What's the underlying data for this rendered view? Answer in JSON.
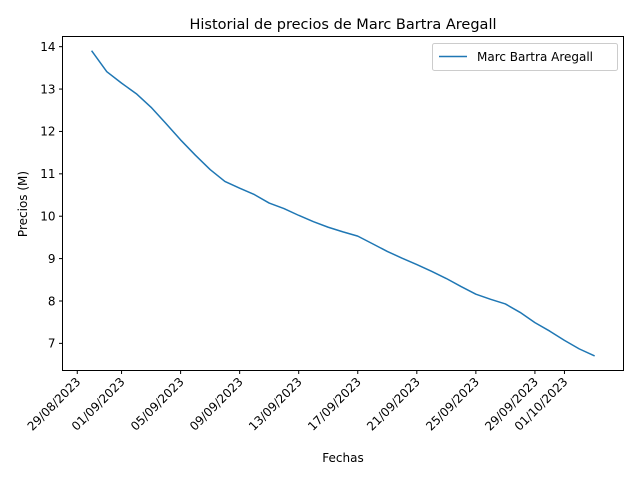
{
  "chart_data": {
    "type": "line",
    "title": "Historial de precios de Marc Bartra Aregall",
    "xlabel": "Fechas",
    "ylabel": "Precios (M)",
    "legend": {
      "placement": "top-right"
    },
    "grid": false,
    "x_ticks": [
      "29/08/2023",
      "01/09/2023",
      "05/09/2023",
      "09/09/2023",
      "13/09/2023",
      "17/09/2023",
      "21/09/2023",
      "25/09/2023",
      "29/09/2023",
      "01/10/2023"
    ],
    "y_ticks": [
      7,
      8,
      9,
      10,
      11,
      12,
      13,
      14
    ],
    "xlim": [
      "2023-08-28",
      "2023-10-05"
    ],
    "ylim": [
      6.36,
      14.24
    ],
    "series": [
      {
        "name": "Marc Bartra Aregall",
        "color": "#1f77b4",
        "points": [
          [
            "2023-08-30",
            13.89
          ],
          [
            "2023-08-31",
            13.41
          ],
          [
            "2023-09-01",
            13.14
          ],
          [
            "2023-09-02",
            12.89
          ],
          [
            "2023-09-03",
            12.57
          ],
          [
            "2023-09-04",
            12.19
          ],
          [
            "2023-09-05",
            11.8
          ],
          [
            "2023-09-06",
            11.44
          ],
          [
            "2023-09-07",
            11.1
          ],
          [
            "2023-09-08",
            10.82
          ],
          [
            "2023-09-09",
            10.66
          ],
          [
            "2023-09-10",
            10.51
          ],
          [
            "2023-09-11",
            10.31
          ],
          [
            "2023-09-12",
            10.18
          ],
          [
            "2023-09-13",
            10.02
          ],
          [
            "2023-09-14",
            9.87
          ],
          [
            "2023-09-15",
            9.74
          ],
          [
            "2023-09-16",
            9.63
          ],
          [
            "2023-09-17",
            9.53
          ],
          [
            "2023-09-18",
            9.35
          ],
          [
            "2023-09-19",
            9.17
          ],
          [
            "2023-09-20",
            9.01
          ],
          [
            "2023-09-21",
            8.86
          ],
          [
            "2023-09-22",
            8.7
          ],
          [
            "2023-09-23",
            8.53
          ],
          [
            "2023-09-24",
            8.34
          ],
          [
            "2023-09-25",
            8.16
          ],
          [
            "2023-09-26",
            8.04
          ],
          [
            "2023-09-27",
            7.93
          ],
          [
            "2023-09-28",
            7.73
          ],
          [
            "2023-09-29",
            7.49
          ],
          [
            "2023-09-30",
            7.29
          ],
          [
            "2023-10-01",
            7.07
          ],
          [
            "2023-10-02",
            6.87
          ],
          [
            "2023-10-03",
            6.71
          ]
        ]
      }
    ]
  }
}
